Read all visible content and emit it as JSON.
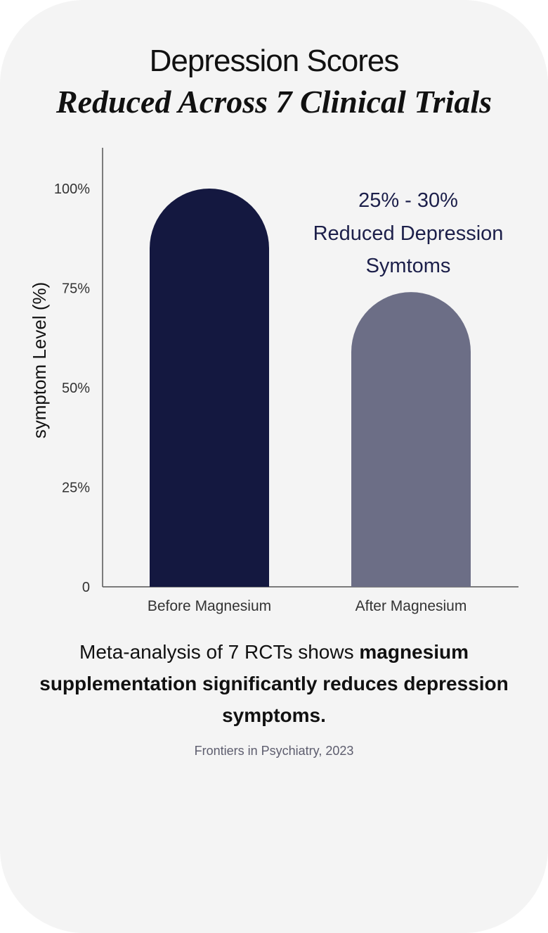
{
  "header": {
    "title_line1": "Depression Scores",
    "title_line2": "Reduced Across 7 Clinical Trials"
  },
  "colors": {
    "background": "#f4f4f4",
    "bar_before": "#141840",
    "bar_after": "#6c6e86",
    "axis": "#555555",
    "annotation": "#1c1f4a"
  },
  "chart_data": {
    "type": "bar",
    "title": "Depression Scores Reduced Across 7 Clinical Trials",
    "categories": [
      "Before Magnesium",
      "After Magnesium"
    ],
    "values": [
      100,
      74
    ],
    "xlabel": "",
    "ylabel": "symptom  Level (%)",
    "ylim": [
      0,
      110
    ],
    "yticks": [
      0,
      25,
      50,
      75,
      100
    ],
    "ytick_labels": [
      "0",
      "25%",
      "50%",
      "75%",
      "100%"
    ],
    "grid": false,
    "annotation": [
      "25% - 30%",
      "Reduced Depression",
      "Symtoms"
    ]
  },
  "summary": {
    "normal": "Meta-analysis of 7 RCTs shows ",
    "bold": "magnesium supplementation significantly reduces depression symptoms."
  },
  "source": "Frontiers in Psychiatry, 2023"
}
